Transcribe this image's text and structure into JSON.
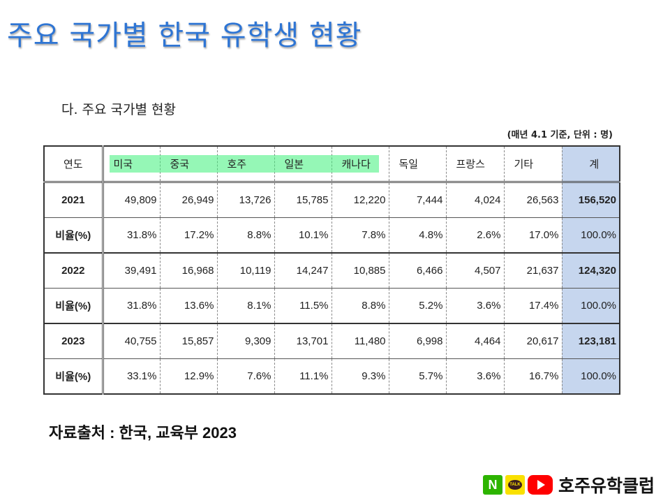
{
  "slide_title": "주요 국가별 한국 유학생 현황",
  "section_title": "다.  주요 국가별 현황",
  "note": "(매년 4.1 기준, 단위 : 명)",
  "table": {
    "headers": [
      "연도",
      "미국",
      "중국",
      "호주",
      "일본",
      "캐나다",
      "독일",
      "프랑스",
      "기타",
      "계"
    ],
    "rows": [
      {
        "label": "2021",
        "values": [
          "49,809",
          "26,949",
          "13,726",
          "15,785",
          "12,220",
          "7,444",
          "4,024",
          "26,563",
          "156,520"
        ]
      },
      {
        "label": "비율(%)",
        "values": [
          "31.8%",
          "17.2%",
          "8.8%",
          "10.1%",
          "7.8%",
          "4.8%",
          "2.6%",
          "17.0%",
          "100.0%"
        ]
      },
      {
        "label": "2022",
        "values": [
          "39,491",
          "16,968",
          "10,119",
          "14,247",
          "10,885",
          "6,466",
          "4,507",
          "21,637",
          "124,320"
        ]
      },
      {
        "label": "비율(%)",
        "values": [
          "31.8%",
          "13.6%",
          "8.1%",
          "11.5%",
          "8.8%",
          "5.2%",
          "3.6%",
          "17.4%",
          "100.0%"
        ]
      },
      {
        "label": "2023",
        "values": [
          "40,755",
          "15,857",
          "9,309",
          "13,701",
          "11,480",
          "6,998",
          "4,464",
          "20,617",
          "123,181"
        ]
      },
      {
        "label": "비율(%)",
        "values": [
          "33.1%",
          "12.9%",
          "7.6%",
          "11.1%",
          "9.3%",
          "5.7%",
          "3.6%",
          "16.7%",
          "100.0%"
        ]
      }
    ]
  },
  "source": "자료출처 : 한국, 교육부 2023",
  "brand": {
    "naver_letter": "N",
    "kakao_text": "TALK",
    "name": "호주유학클럽"
  },
  "colors": {
    "title": "#2e75d4",
    "highlight": "#3ef07a",
    "total_column": "#c6d6ee"
  },
  "icons": [
    "naver-icon",
    "kakaotalk-icon",
    "youtube-icon"
  ]
}
